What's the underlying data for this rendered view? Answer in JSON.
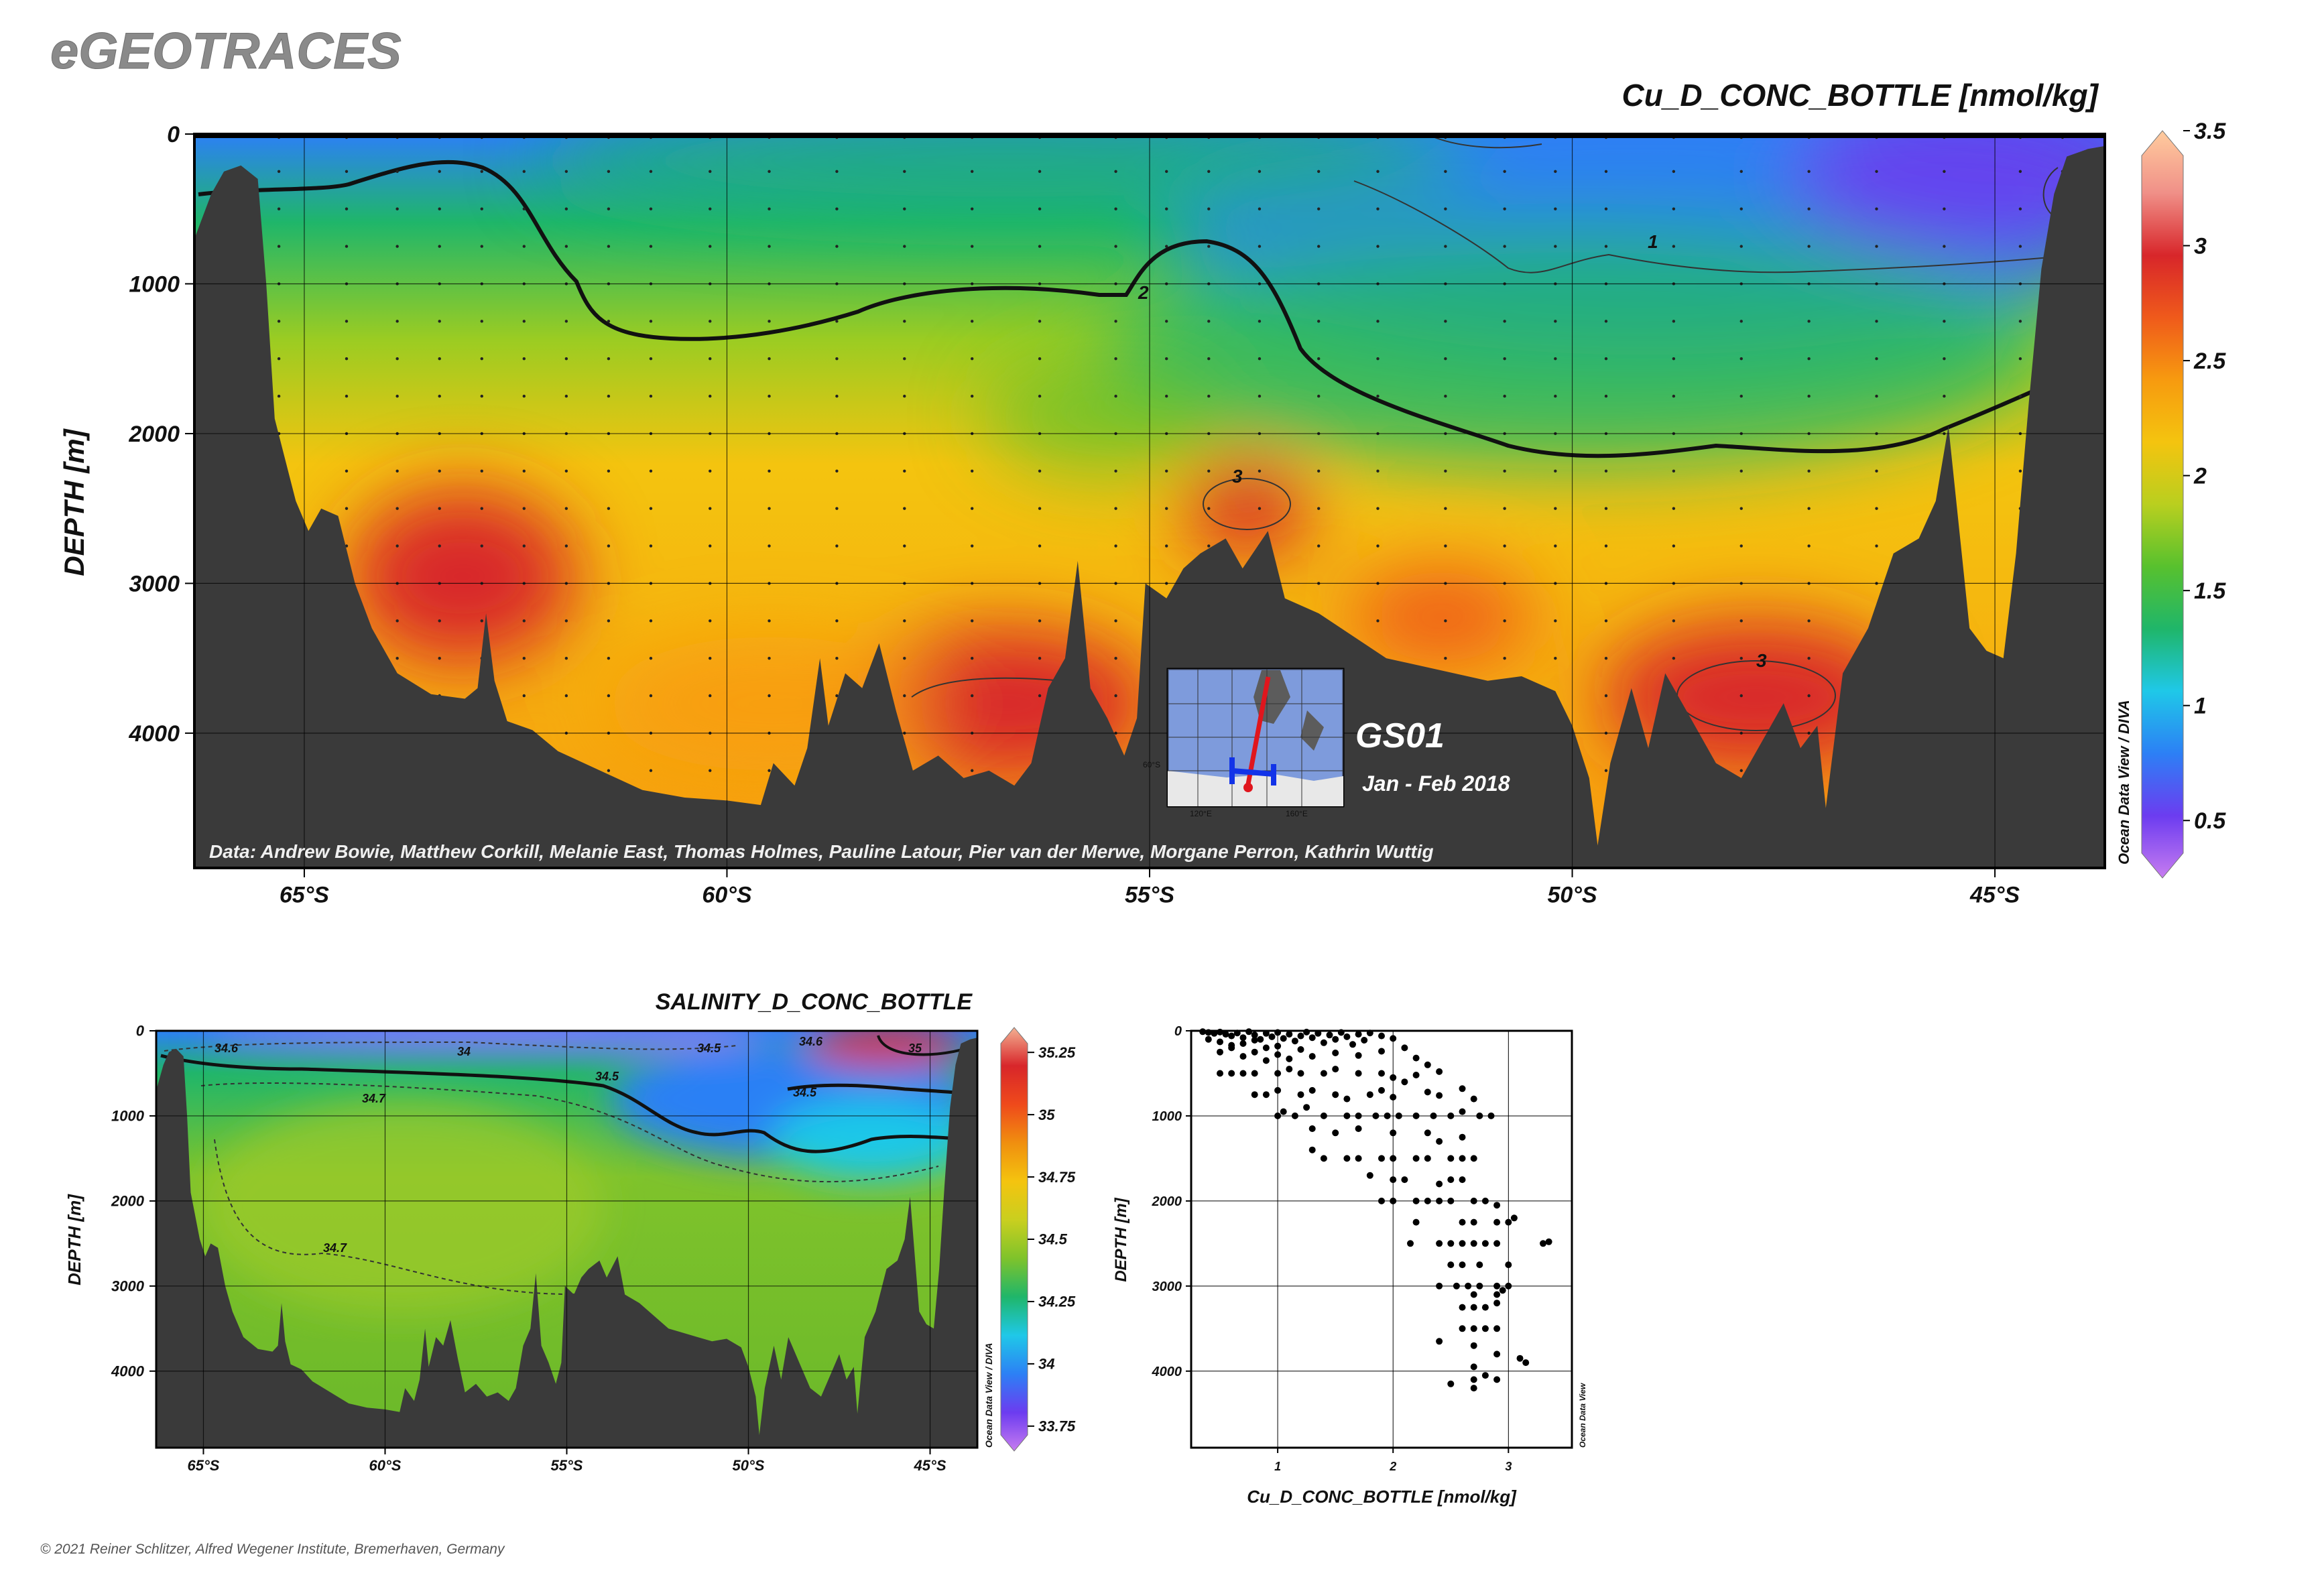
{
  "brand": "eGEOTRACES",
  "copyright": "© 2021 Reiner Schlitzer, Alfred Wegener Institute, Bremerhaven, Germany",
  "credit": "Data: Andrew Bowie, Matthew Corkill, Melanie East, Thomas Holmes, Pauline Latour, Pier van der Merwe, Morgane Perron, Kathrin Wuttig",
  "odv_tag": "Ocean Data View / DIVA",
  "odv_tag_short": "Ocean Data View",
  "inset": {
    "cruise": "GS01",
    "dates": "Jan - Feb 2018",
    "lat_label": "60°S",
    "lon_labels": [
      "120°E",
      "160°E"
    ]
  },
  "chart_data": [
    {
      "type": "heatmap",
      "title": "Cu_D_CONC_BOTTLE [nmol/kg]",
      "ylabel": "DEPTH [m]",
      "xlabel": "",
      "x_ticks": [
        "65°S",
        "60°S",
        "55°S",
        "50°S",
        "45°S"
      ],
      "x_tick_values": [
        -65,
        -60,
        -55,
        -50,
        -45
      ],
      "xlim": [
        -66.3,
        -43.7
      ],
      "y_ticks": [
        "0",
        "1000",
        "2000",
        "3000",
        "4000"
      ],
      "y_tick_values": [
        0,
        1000,
        2000,
        3000,
        4000
      ],
      "ylim": [
        4900,
        0
      ],
      "colorbar": {
        "range": [
          0.25,
          3.5
        ],
        "ticks": [
          "0.5",
          "1",
          "1.5",
          "2",
          "2.5",
          "3",
          "3.5"
        ],
        "tick_values": [
          0.5,
          1,
          1.5,
          2,
          2.5,
          3,
          3.5
        ]
      },
      "contour_labels": [
        "1",
        "2",
        "3",
        "3"
      ]
    },
    {
      "type": "heatmap",
      "title": "SALINITY_D_CONC_BOTTLE",
      "ylabel": "DEPTH [m]",
      "xlabel": "",
      "x_ticks": [
        "65°S",
        "60°S",
        "55°S",
        "50°S",
        "45°S"
      ],
      "x_tick_values": [
        -65,
        -60,
        -55,
        -50,
        -45
      ],
      "xlim": [
        -66.3,
        -43.7
      ],
      "y_ticks": [
        "0",
        "1000",
        "2000",
        "3000",
        "4000"
      ],
      "y_tick_values": [
        0,
        1000,
        2000,
        3000,
        4000
      ],
      "ylim": [
        4900,
        0
      ],
      "colorbar": {
        "range": [
          33.65,
          35.35
        ],
        "ticks": [
          "33.75",
          "34",
          "34.25",
          "34.5",
          "34.75",
          "35",
          "35.25"
        ],
        "tick_values": [
          33.75,
          34,
          34.25,
          34.5,
          34.75,
          35,
          35.25
        ]
      },
      "contour_labels": [
        "34.6",
        "34",
        "34.5",
        "34.5",
        "34.6",
        "35",
        "34.5",
        "34.7",
        "34.7"
      ]
    },
    {
      "type": "scatter",
      "title": "",
      "xlabel": "Cu_D_CONC_BOTTLE [nmol/kg]",
      "ylabel": "DEPTH [m]",
      "x_ticks": [
        "1",
        "2",
        "3"
      ],
      "x_tick_values": [
        1,
        2,
        3
      ],
      "xlim": [
        0.25,
        3.55
      ],
      "y_ticks": [
        "0",
        "1000",
        "2000",
        "3000",
        "4000"
      ],
      "y_tick_values": [
        0,
        1000,
        2000,
        3000,
        4000
      ],
      "ylim": [
        4900,
        0
      ],
      "points": [
        [
          0.35,
          10
        ],
        [
          0.4,
          20
        ],
        [
          0.45,
          30
        ],
        [
          0.5,
          15
        ],
        [
          0.55,
          40
        ],
        [
          0.6,
          60
        ],
        [
          0.65,
          25
        ],
        [
          0.7,
          80
        ],
        [
          0.75,
          10
        ],
        [
          0.8,
          50
        ],
        [
          0.85,
          100
        ],
        [
          0.9,
          30
        ],
        [
          0.95,
          70
        ],
        [
          1.0,
          20
        ],
        [
          1.05,
          90
        ],
        [
          1.1,
          40
        ],
        [
          1.15,
          120
        ],
        [
          1.2,
          60
        ],
        [
          1.25,
          15
        ],
        [
          1.3,
          80
        ],
        [
          1.35,
          30
        ],
        [
          1.4,
          140
        ],
        [
          1.45,
          50
        ],
        [
          1.5,
          100
        ],
        [
          1.55,
          20
        ],
        [
          1.6,
          70
        ],
        [
          1.65,
          160
        ],
        [
          1.7,
          40
        ],
        [
          1.75,
          110
        ],
        [
          1.8,
          25
        ],
        [
          1.9,
          60
        ],
        [
          2.0,
          90
        ],
        [
          0.4,
          100
        ],
        [
          0.5,
          130
        ],
        [
          0.6,
          170
        ],
        [
          0.7,
          150
        ],
        [
          0.8,
          110
        ],
        [
          0.9,
          200
        ],
        [
          1.0,
          180
        ],
        [
          1.2,
          220
        ],
        [
          0.5,
          250
        ],
        [
          0.6,
          200
        ],
        [
          0.7,
          300
        ],
        [
          0.8,
          250
        ],
        [
          0.9,
          350
        ],
        [
          1.0,
          280
        ],
        [
          1.1,
          330
        ],
        [
          1.3,
          300
        ],
        [
          1.5,
          260
        ],
        [
          1.7,
          290
        ],
        [
          1.9,
          240
        ],
        [
          2.1,
          200
        ],
        [
          2.2,
          320
        ],
        [
          2.3,
          400
        ],
        [
          2.4,
          480
        ],
        [
          0.5,
          500
        ],
        [
          0.6,
          500
        ],
        [
          0.7,
          500
        ],
        [
          0.8,
          500
        ],
        [
          1.0,
          500
        ],
        [
          1.1,
          450
        ],
        [
          1.2,
          500
        ],
        [
          1.4,
          500
        ],
        [
          1.5,
          450
        ],
        [
          1.7,
          500
        ],
        [
          1.9,
          500
        ],
        [
          2.0,
          550
        ],
        [
          2.1,
          600
        ],
        [
          2.2,
          520
        ],
        [
          0.8,
          750
        ],
        [
          0.9,
          750
        ],
        [
          1.0,
          700
        ],
        [
          1.2,
          750
        ],
        [
          1.3,
          700
        ],
        [
          1.5,
          750
        ],
        [
          1.6,
          800
        ],
        [
          1.8,
          750
        ],
        [
          1.9,
          700
        ],
        [
          2.0,
          780
        ],
        [
          2.3,
          720
        ],
        [
          2.4,
          760
        ],
        [
          2.6,
          680
        ],
        [
          2.7,
          800
        ],
        [
          1.0,
          1000
        ],
        [
          1.05,
          950
        ],
        [
          1.15,
          1000
        ],
        [
          1.25,
          900
        ],
        [
          1.4,
          1000
        ],
        [
          1.6,
          1000
        ],
        [
          1.7,
          1000
        ],
        [
          1.85,
          1000
        ],
        [
          1.95,
          1000
        ],
        [
          2.05,
          1000
        ],
        [
          2.2,
          1000
        ],
        [
          2.35,
          1000
        ],
        [
          2.5,
          1000
        ],
        [
          2.6,
          950
        ],
        [
          2.75,
          1000
        ],
        [
          2.85,
          1000
        ],
        [
          1.3,
          1150
        ],
        [
          1.5,
          1200
        ],
        [
          1.7,
          1150
        ],
        [
          2.0,
          1200
        ],
        [
          2.3,
          1200
        ],
        [
          2.4,
          1300
        ],
        [
          2.6,
          1250
        ],
        [
          1.3,
          1400
        ],
        [
          1.4,
          1500
        ],
        [
          1.6,
          1500
        ],
        [
          1.7,
          1500
        ],
        [
          1.9,
          1500
        ],
        [
          2.0,
          1500
        ],
        [
          2.2,
          1500
        ],
        [
          2.3,
          1500
        ],
        [
          2.5,
          1500
        ],
        [
          2.6,
          1500
        ],
        [
          2.7,
          1500
        ],
        [
          1.8,
          1700
        ],
        [
          2.0,
          1750
        ],
        [
          2.1,
          1750
        ],
        [
          2.4,
          1800
        ],
        [
          2.5,
          1750
        ],
        [
          2.6,
          1750
        ],
        [
          1.9,
          2000
        ],
        [
          2.0,
          2000
        ],
        [
          2.2,
          2000
        ],
        [
          2.3,
          2000
        ],
        [
          2.4,
          2000
        ],
        [
          2.5,
          2000
        ],
        [
          2.7,
          2000
        ],
        [
          2.8,
          2000
        ],
        [
          2.9,
          2050
        ],
        [
          2.2,
          2250
        ],
        [
          2.6,
          2250
        ],
        [
          2.7,
          2250
        ],
        [
          2.9,
          2250
        ],
        [
          3.0,
          2250
        ],
        [
          3.05,
          2200
        ],
        [
          2.15,
          2500
        ],
        [
          2.4,
          2500
        ],
        [
          2.5,
          2500
        ],
        [
          2.6,
          2500
        ],
        [
          2.7,
          2500
        ],
        [
          2.8,
          2500
        ],
        [
          2.9,
          2500
        ],
        [
          3.3,
          2500
        ],
        [
          3.35,
          2480
        ],
        [
          2.5,
          2750
        ],
        [
          2.6,
          2750
        ],
        [
          2.75,
          2750
        ],
        [
          3.0,
          2750
        ],
        [
          2.4,
          3000
        ],
        [
          2.55,
          3000
        ],
        [
          2.65,
          3000
        ],
        [
          2.75,
          3000
        ],
        [
          2.9,
          3000
        ],
        [
          2.95,
          3050
        ],
        [
          3.0,
          3000
        ],
        [
          2.7,
          3100
        ],
        [
          2.9,
          3100
        ],
        [
          2.6,
          3250
        ],
        [
          2.7,
          3250
        ],
        [
          2.8,
          3250
        ],
        [
          2.9,
          3200
        ],
        [
          2.7,
          3500
        ],
        [
          2.8,
          3500
        ],
        [
          2.9,
          3500
        ],
        [
          2.6,
          3500
        ],
        [
          2.4,
          3650
        ],
        [
          2.7,
          3700
        ],
        [
          2.9,
          3800
        ],
        [
          3.1,
          3850
        ],
        [
          3.15,
          3900
        ],
        [
          2.7,
          3950
        ],
        [
          2.8,
          4050
        ],
        [
          2.9,
          4100
        ],
        [
          2.7,
          4100
        ],
        [
          2.5,
          4150
        ],
        [
          2.7,
          4200
        ]
      ]
    }
  ],
  "colors": {
    "seafloor": "#3a3a3a",
    "cu_stops": [
      "#c77cf0",
      "#6c3cf0",
      "#2c80f5",
      "#1fc8e8",
      "#1fb66a",
      "#58c12e",
      "#b9cf1f",
      "#f4c40f",
      "#f79a0f",
      "#ef5a1b",
      "#d8262a",
      "#f09088",
      "#ffcc9e"
    ],
    "sal_stops": [
      "#c77cf0",
      "#6c3cf0",
      "#2c80f5",
      "#1fc8e8",
      "#1fb66a",
      "#7fc32b",
      "#c9cf1f",
      "#f4c40f",
      "#f08f0f",
      "#ef4a1b",
      "#d8262a",
      "#f3b092"
    ]
  }
}
